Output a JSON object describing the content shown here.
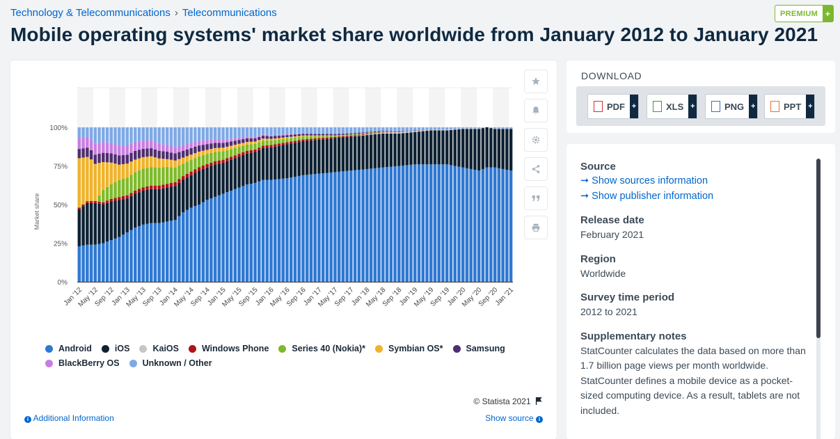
{
  "breadcrumb": {
    "item1": "Technology & Telecommunications",
    "separator": "›",
    "item2": "Telecommunications"
  },
  "premium": {
    "label": "PREMIUM",
    "plus": "+"
  },
  "title": "Mobile operating systems' market share worldwide from January 2012 to January 2021",
  "chart_data": {
    "type": "bar",
    "stacked": true,
    "title": "",
    "xlabel": "",
    "ylabel": "Market share",
    "ylim": [
      0,
      100
    ],
    "y_ticks": [
      "0%",
      "25%",
      "50%",
      "75%",
      "100%"
    ],
    "x_tick_labels": [
      "Jan '12",
      "May '12",
      "Sep '12",
      "Jan '13",
      "May '13",
      "Sep '13",
      "Jan '14",
      "May '14",
      "Sep '14",
      "Jan '15",
      "May '15",
      "Sep '15",
      "Jan '16",
      "May '16",
      "Sep '16",
      "Jan '17",
      "May '17",
      "Sep '17",
      "Jan '18",
      "May '18",
      "Sep '18",
      "Jan '19",
      "May '19",
      "Sep '19",
      "Jan '20",
      "May '20",
      "Sep '20",
      "Jan '21"
    ],
    "series": [
      {
        "name": "Android",
        "color": "#2e78d2",
        "key_values": [
          [
            0,
            23
          ],
          [
            2,
            24
          ],
          [
            4,
            24
          ],
          [
            6,
            25
          ],
          [
            8,
            27
          ],
          [
            10,
            29
          ],
          [
            12,
            32
          ],
          [
            14,
            35
          ],
          [
            16,
            37
          ],
          [
            18,
            38
          ],
          [
            20,
            38
          ],
          [
            22,
            39
          ],
          [
            24,
            40
          ],
          [
            26,
            45
          ],
          [
            28,
            48
          ],
          [
            30,
            50
          ],
          [
            32,
            53
          ],
          [
            34,
            55
          ],
          [
            36,
            57
          ],
          [
            38,
            59
          ],
          [
            40,
            61
          ],
          [
            42,
            63
          ],
          [
            44,
            64
          ],
          [
            46,
            66
          ],
          [
            48,
            66
          ],
          [
            52,
            67
          ],
          [
            56,
            69
          ],
          [
            60,
            70
          ],
          [
            64,
            71
          ],
          [
            68,
            72
          ],
          [
            72,
            73
          ],
          [
            76,
            74
          ],
          [
            80,
            75
          ],
          [
            84,
            76
          ],
          [
            88,
            76
          ],
          [
            92,
            76
          ],
          [
            94,
            75
          ],
          [
            96,
            74
          ],
          [
            98,
            73
          ],
          [
            100,
            72
          ],
          [
            102,
            74
          ],
          [
            104,
            74
          ],
          [
            106,
            73
          ],
          [
            108,
            72
          ]
        ]
      },
      {
        "name": "iOS",
        "color": "#0f2233",
        "key_values": [
          [
            0,
            24
          ],
          [
            2,
            27
          ],
          [
            4,
            27
          ],
          [
            6,
            25
          ],
          [
            8,
            25
          ],
          [
            10,
            24
          ],
          [
            12,
            22
          ],
          [
            14,
            22
          ],
          [
            16,
            22
          ],
          [
            18,
            22
          ],
          [
            20,
            22
          ],
          [
            22,
            22
          ],
          [
            24,
            22
          ],
          [
            26,
            21
          ],
          [
            28,
            21
          ],
          [
            30,
            22
          ],
          [
            32,
            21
          ],
          [
            34,
            21
          ],
          [
            36,
            20
          ],
          [
            38,
            20
          ],
          [
            40,
            20
          ],
          [
            44,
            20
          ],
          [
            48,
            21
          ],
          [
            52,
            22
          ],
          [
            56,
            22
          ],
          [
            60,
            22
          ],
          [
            64,
            22
          ],
          [
            68,
            22
          ],
          [
            72,
            22
          ],
          [
            76,
            22
          ],
          [
            80,
            21
          ],
          [
            84,
            21
          ],
          [
            88,
            22
          ],
          [
            92,
            22
          ],
          [
            96,
            25
          ],
          [
            100,
            27
          ],
          [
            104,
            25
          ],
          [
            108,
            27
          ]
        ]
      },
      {
        "name": "KaiOS",
        "color": "#c6c6c6",
        "key_values": [
          [
            0,
            0
          ],
          [
            68,
            0
          ],
          [
            72,
            0.5
          ],
          [
            80,
            0.8
          ],
          [
            88,
            0.5
          ],
          [
            96,
            0.3
          ],
          [
            108,
            0.1
          ]
        ]
      },
      {
        "name": "Windows Phone",
        "color": "#b0121b",
        "key_values": [
          [
            0,
            1
          ],
          [
            12,
            2
          ],
          [
            24,
            2.5
          ],
          [
            36,
            2
          ],
          [
            48,
            1.5
          ],
          [
            60,
            1
          ],
          [
            72,
            0.5
          ],
          [
            80,
            0.2
          ],
          [
            90,
            0
          ]
        ]
      },
      {
        "name": "Series 40 (Nokia)*",
        "color": "#7fba2b",
        "key_values": [
          [
            0,
            0
          ],
          [
            4,
            0
          ],
          [
            6,
            8
          ],
          [
            10,
            11
          ],
          [
            14,
            12
          ],
          [
            18,
            12
          ],
          [
            22,
            11
          ],
          [
            26,
            8
          ],
          [
            30,
            7
          ],
          [
            34,
            6
          ],
          [
            38,
            5
          ],
          [
            42,
            4
          ],
          [
            48,
            3
          ],
          [
            56,
            2
          ],
          [
            64,
            1
          ],
          [
            72,
            0.5
          ],
          [
            80,
            0
          ]
        ]
      },
      {
        "name": "Symbian OS*",
        "color": "#f0b329",
        "key_values": [
          [
            0,
            32
          ],
          [
            3,
            27
          ],
          [
            6,
            18
          ],
          [
            10,
            10
          ],
          [
            14,
            8
          ],
          [
            18,
            7
          ],
          [
            22,
            5
          ],
          [
            26,
            4
          ],
          [
            30,
            3
          ],
          [
            34,
            2.5
          ],
          [
            40,
            2
          ],
          [
            48,
            1
          ],
          [
            56,
            0.5
          ],
          [
            64,
            0
          ]
        ]
      },
      {
        "name": "Samsung",
        "color": "#4f2e6e",
        "key_values": [
          [
            0,
            6
          ],
          [
            10,
            6
          ],
          [
            20,
            5
          ],
          [
            30,
            4
          ],
          [
            40,
            2.5
          ],
          [
            50,
            1.5
          ],
          [
            60,
            1
          ],
          [
            72,
            0.5
          ],
          [
            84,
            0.2
          ],
          [
            96,
            0
          ]
        ]
      },
      {
        "name": "BlackBerry OS",
        "color": "#c77ee0",
        "key_values": [
          [
            0,
            7
          ],
          [
            6,
            7
          ],
          [
            12,
            6
          ],
          [
            18,
            5
          ],
          [
            24,
            4
          ],
          [
            30,
            3
          ],
          [
            36,
            2
          ],
          [
            44,
            1
          ],
          [
            52,
            0.5
          ],
          [
            60,
            0.3
          ],
          [
            72,
            0
          ]
        ]
      }
    ],
    "remainder_series": {
      "name": "Unknown / Other",
      "color": "#7fa9e6",
      "note": "fills each bar to 100%"
    },
    "months": 109
  },
  "chart_ui": {
    "side_icons": [
      "star-icon",
      "bell-icon",
      "gear-icon",
      "share-icon",
      "quote-icon",
      "print-icon"
    ],
    "copyright": "© Statista 2021",
    "additional_info": "Additional Information",
    "show_source": "Show source"
  },
  "download": {
    "title": "DOWNLOAD",
    "buttons": [
      {
        "label": "PDF",
        "icon": "pdf-file-icon",
        "color": "#d9312b"
      },
      {
        "label": "XLS",
        "icon": "xls-file-icon",
        "color": "#3a9a3a"
      },
      {
        "label": "PNG",
        "icon": "png-file-icon",
        "color": "#3a6fc4"
      },
      {
        "label": "PPT",
        "icon": "ppt-file-icon",
        "color": "#e8722a"
      }
    ],
    "plus": "+"
  },
  "source_panel": {
    "source_heading": "Source",
    "link_sources": "➞ Show sources information",
    "link_publisher": "➞ Show publisher information",
    "release_heading": "Release date",
    "release_value": "February 2021",
    "region_heading": "Region",
    "region_value": "Worldwide",
    "survey_heading": "Survey time period",
    "survey_value": "2012 to 2021",
    "notes_heading": "Supplementary notes",
    "notes_text": "StatCounter calculates the data based on more than 1.7 billion page views per month worldwide. StatCounter defines a mobile device as a pocket-sized computing device. As a result, tablets are not included."
  }
}
